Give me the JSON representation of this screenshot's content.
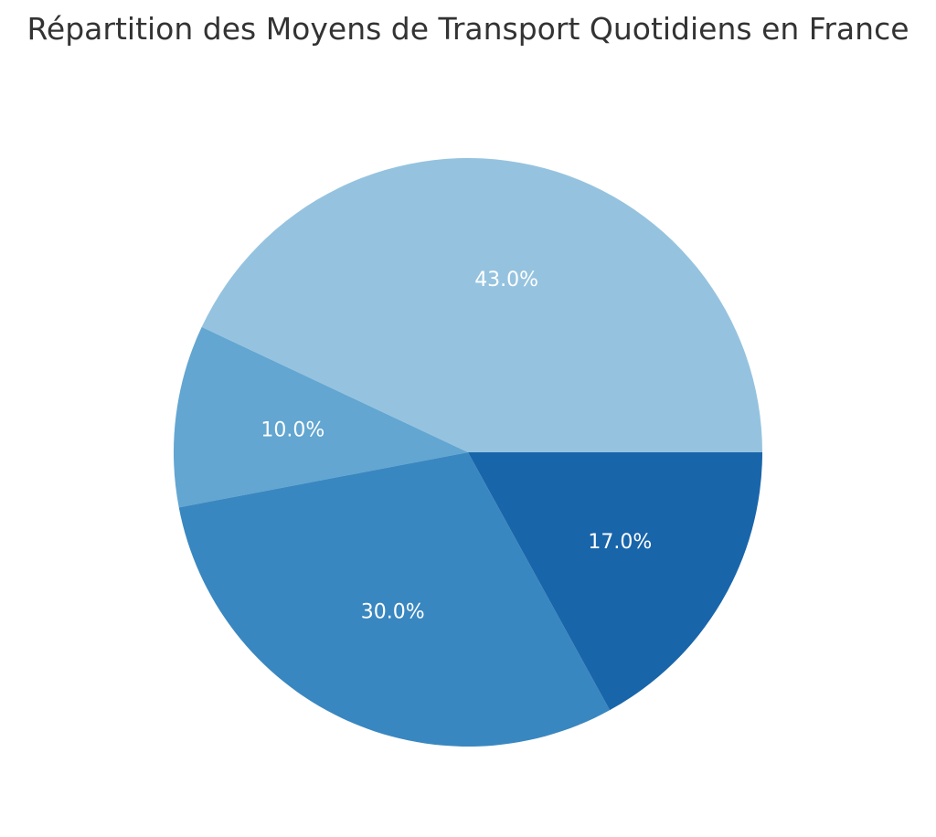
{
  "chart_data": {
    "type": "pie",
    "title": "Répartition des Moyens de Transport Quotidiens en France",
    "slices": [
      {
        "value": 43.0,
        "label": "43.0%",
        "color": "#95c3df"
      },
      {
        "value": 10.0,
        "label": "10.0%",
        "color": "#62a6d1"
      },
      {
        "value": 30.0,
        "label": "30.0%",
        "color": "#3987c0"
      },
      {
        "value": 17.0,
        "label": "17.0%",
        "color": "#1965aa"
      }
    ],
    "start_angle_deg": 0,
    "direction": "counterclockwise"
  }
}
